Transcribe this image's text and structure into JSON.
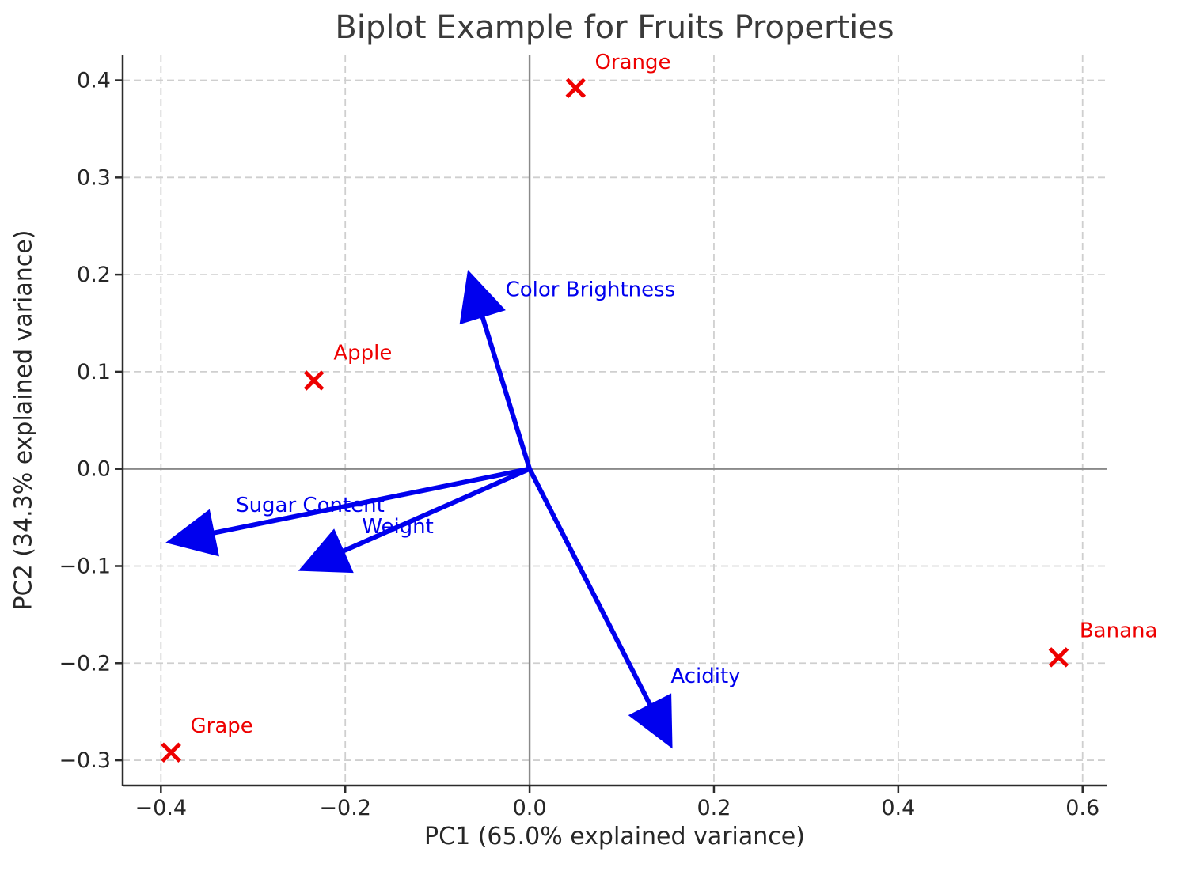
{
  "chart_data": {
    "type": "scatter",
    "subtype": "pca-biplot",
    "title": "Biplot Example for Fruits Properties",
    "xlabel": "PC1 (65.0% explained variance)",
    "ylabel": "PC2 (34.3% explained variance)",
    "xlim": [
      -0.4415,
      0.626
    ],
    "ylim": [
      -0.326,
      0.4265
    ],
    "grid": "dashed",
    "zero_lines": true,
    "xticks": {
      "values": [
        -0.4,
        -0.2,
        0.0,
        0.2,
        0.4,
        0.6
      ],
      "labels": [
        "−0.4",
        "−0.2",
        "0.0",
        "0.2",
        "0.4",
        "0.6"
      ]
    },
    "yticks": {
      "values": [
        0.4,
        0.3,
        0.2,
        0.1,
        0.0,
        -0.1,
        -0.2,
        -0.3
      ],
      "labels": [
        "0.4",
        "0.3",
        "0.2",
        "0.1",
        "0.0",
        "−0.1",
        "−0.2",
        "−0.3"
      ]
    },
    "samples": [
      {
        "name": "Orange",
        "x": 0.05,
        "y": 0.392,
        "label_x": 0.112,
        "label_y": 0.419
      },
      {
        "name": "Apple",
        "x": -0.234,
        "y": 0.091,
        "label_x": -0.181,
        "label_y": 0.12
      },
      {
        "name": "Banana",
        "x": 0.574,
        "y": -0.194,
        "label_x": 0.639,
        "label_y": -0.166
      },
      {
        "name": "Grape",
        "x": -0.389,
        "y": -0.292,
        "label_x": -0.334,
        "label_y": -0.264
      }
    ],
    "vectors": [
      {
        "name": "Color Brightness",
        "x": -0.067,
        "y": 0.205,
        "label_x": 0.066,
        "label_y": 0.185
      },
      {
        "name": "Sugar Content",
        "x": -0.395,
        "y": -0.076,
        "label_x": -0.238,
        "label_y": -0.037
      },
      {
        "name": "Weight",
        "x": -0.251,
        "y": -0.105,
        "label_x": -0.143,
        "label_y": -0.059
      },
      {
        "name": "Acidity",
        "x": 0.155,
        "y": -0.288,
        "label_x": 0.191,
        "label_y": -0.213
      }
    ],
    "colors": {
      "samples": "#ee0000",
      "vectors": "#0000ee",
      "zero_line": "#8a8a8a",
      "grid": "#cfcfcf",
      "axis": "#2b2b2b",
      "tick_text": "#262626",
      "title_text": "#3a3a3a"
    }
  }
}
